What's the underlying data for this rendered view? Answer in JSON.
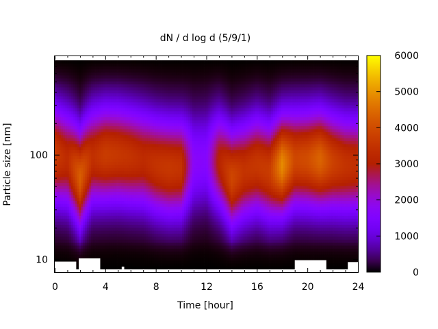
{
  "chart_data": {
    "type": "heatmap",
    "title": "dN / d log d (5/9/1)",
    "xlabel": "Time [hour]",
    "ylabel": "Particle size [nm]",
    "xlim": [
      0,
      24
    ],
    "x_ticks": [
      0,
      4,
      8,
      12,
      16,
      20,
      24
    ],
    "x_tick_labels": [
      "0",
      "4",
      "8",
      "12",
      "16",
      "20",
      "24"
    ],
    "y_scale": "log",
    "ylim": [
      8,
      800
    ],
    "y_ticks": [
      10,
      100
    ],
    "y_tick_labels": [
      "10",
      "100"
    ],
    "colorbar": {
      "min": 0,
      "max": 6000,
      "ticks": [
        0,
        1000,
        2000,
        3000,
        4000,
        5000,
        6000
      ],
      "tick_labels": [
        "0",
        "1000",
        "2000",
        "3000",
        "4000",
        "5000",
        "6000"
      ],
      "palette": "gnuplot black-purple-red-orange-yellow"
    },
    "mode_peak_by_hour": {
      "x": [
        0,
        1,
        2,
        3,
        4,
        5,
        6,
        7,
        8,
        9,
        10,
        11,
        12,
        13,
        14,
        15,
        16,
        17,
        18,
        19,
        20,
        21,
        22,
        23,
        24
      ],
      "peak_diameter_nm": [
        100,
        90,
        60,
        95,
        100,
        100,
        95,
        90,
        80,
        75,
        75,
        85,
        90,
        85,
        60,
        70,
        80,
        70,
        80,
        90,
        90,
        90,
        85,
        80,
        80
      ],
      "peak_value": [
        3700,
        3300,
        4300,
        3400,
        3700,
        3600,
        3500,
        3300,
        3500,
        3600,
        3500,
        1700,
        1600,
        3100,
        3900,
        3500,
        3600,
        3700,
        4900,
        3900,
        4000,
        4400,
        3800,
        3500,
        3400
      ]
    },
    "missing_data": [
      {
        "x": [
          0,
          1.7
        ],
        "y": [
          8,
          9.5
        ]
      },
      {
        "x": [
          1.9,
          3.6
        ],
        "y": [
          8,
          10.2
        ]
      },
      {
        "x": [
          5.3,
          5.5
        ],
        "y": [
          8,
          8.5
        ]
      },
      {
        "x": [
          19,
          21.5
        ],
        "y": [
          8,
          9.8
        ]
      },
      {
        "x": [
          23.2,
          24
        ],
        "y": [
          8,
          9.4
        ]
      }
    ]
  }
}
